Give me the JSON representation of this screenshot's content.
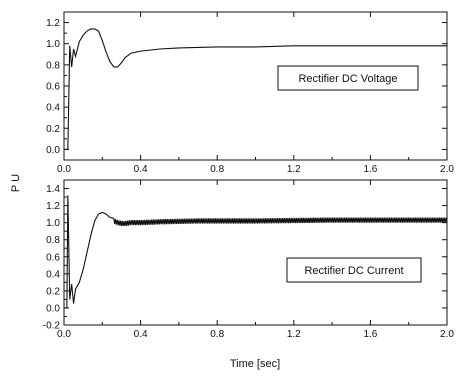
{
  "figure": {
    "ylabel": "P U",
    "xlabel": "Time [sec]"
  },
  "chart_data": [
    {
      "type": "line",
      "legend": "Rectifier DC Voltage",
      "xlim": [
        0,
        2.0
      ],
      "ylim": [
        -0.1,
        1.3
      ],
      "xticks": [
        0,
        0.4,
        0.8,
        1.2,
        1.6,
        2.0
      ],
      "xtick_labels": [
        "0.0",
        "0.4",
        "0.8",
        "1.2",
        "1.6",
        "2.0"
      ],
      "yticks": [
        0,
        0.2,
        0.4,
        0.6,
        0.8,
        1.0,
        1.2
      ],
      "ytick_labels": [
        "0.0",
        "0.2",
        "0.4",
        "0.6",
        "0.8",
        "1.0",
        "1.2"
      ],
      "x": [
        0,
        0.02,
        0.03,
        0.04,
        0.05,
        0.06,
        0.08,
        0.1,
        0.12,
        0.14,
        0.16,
        0.18,
        0.2,
        0.22,
        0.24,
        0.26,
        0.28,
        0.3,
        0.32,
        0.35,
        0.4,
        0.5,
        0.6,
        0.8,
        1.0,
        1.2,
        1.5,
        1.8,
        2.0
      ],
      "y": [
        0,
        0,
        0.98,
        0.78,
        0.95,
        0.88,
        1.02,
        1.08,
        1.12,
        1.14,
        1.14,
        1.12,
        1.03,
        0.92,
        0.83,
        0.78,
        0.78,
        0.82,
        0.87,
        0.91,
        0.93,
        0.95,
        0.96,
        0.97,
        0.97,
        0.98,
        0.98,
        0.98,
        0.98
      ]
    },
    {
      "type": "line",
      "legend": "Rectifier DC Current",
      "xlim": [
        0,
        2.0
      ],
      "ylim": [
        -0.2,
        1.5
      ],
      "xticks": [
        0,
        0.4,
        0.8,
        1.2,
        1.6,
        2.0
      ],
      "xtick_labels": [
        "0.0",
        "0.4",
        "0.8",
        "1.2",
        "1.6",
        "2.0"
      ],
      "yticks": [
        -0.2,
        0,
        0.2,
        0.4,
        0.6,
        0.8,
        1.0,
        1.2,
        1.4
      ],
      "ytick_labels": [
        "-0.2",
        "0.0",
        "0.2",
        "0.4",
        "0.6",
        "0.8",
        "1.0",
        "1.2",
        "1.4"
      ],
      "x": [
        0,
        0.015,
        0.02,
        0.03,
        0.04,
        0.05,
        0.06,
        0.08,
        0.1,
        0.12,
        0.14,
        0.16,
        0.18,
        0.2,
        0.22,
        0.24,
        0.26,
        0.28,
        0.3,
        0.32,
        0.35,
        0.4,
        0.5,
        0.7,
        1.0,
        1.4,
        1.8,
        2.0
      ],
      "y": [
        0,
        0,
        1.32,
        0.1,
        0.28,
        0.05,
        0.22,
        0.3,
        0.45,
        0.65,
        0.85,
        1.02,
        1.1,
        1.12,
        1.1,
        1.06,
        1.02,
        1.0,
        0.99,
        0.99,
        1.0,
        1.0,
        1.01,
        1.02,
        1.02,
        1.03,
        1.03,
        1.03
      ],
      "ripple": {
        "from": 0.26,
        "to": 2.0,
        "amplitude": 0.03
      }
    }
  ]
}
